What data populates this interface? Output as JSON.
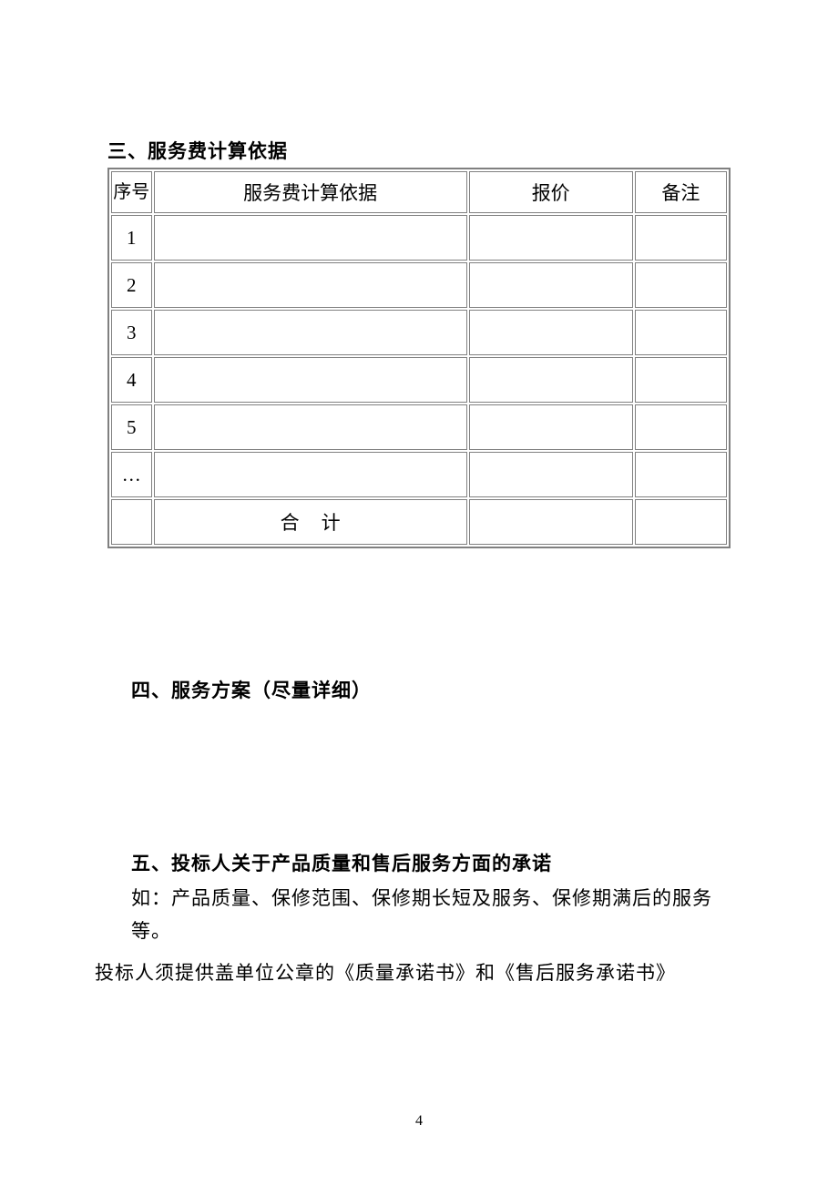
{
  "section3": {
    "heading": "三、服务费计算依据",
    "table": {
      "headers": {
        "seq": "序号",
        "basis": "服务费计算依据",
        "price": "报价",
        "note": "备注"
      },
      "rows": [
        {
          "seq": "1",
          "basis": "",
          "price": "",
          "note": ""
        },
        {
          "seq": "2",
          "basis": "",
          "price": "",
          "note": ""
        },
        {
          "seq": "3",
          "basis": "",
          "price": "",
          "note": ""
        },
        {
          "seq": "4",
          "basis": "",
          "price": "",
          "note": ""
        },
        {
          "seq": "5",
          "basis": "",
          "price": "",
          "note": ""
        },
        {
          "seq": "…",
          "basis": "",
          "price": "",
          "note": ""
        }
      ],
      "total_label": "合计"
    }
  },
  "section4": {
    "heading": "四、服务方案（尽量详细）"
  },
  "section5": {
    "heading": "五、投标人关于产品质量和售后服务方面的承诺",
    "para1": "如：产品质量、保修范围、保修期长短及服务、保修期满后的服务等。",
    "para2": "投标人须提供盖单位公章的《质量承诺书》和《售后服务承诺书》"
  },
  "page_number": "4"
}
